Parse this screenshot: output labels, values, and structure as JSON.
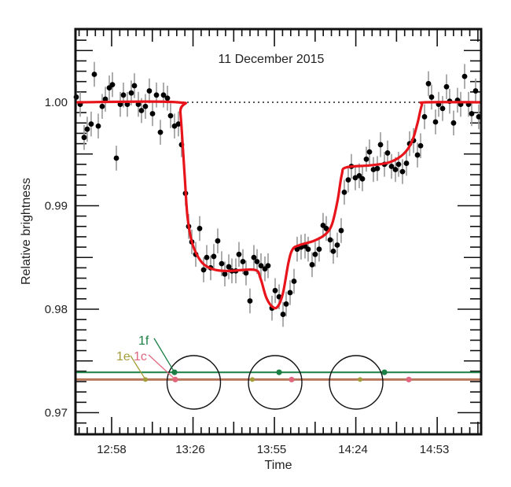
{
  "chart_data": {
    "type": "scatter",
    "title": "11 December 2015",
    "xlabel": "Time",
    "ylabel": "Relative brightness",
    "xlim": [
      "12:44:50",
      "15:09:36"
    ],
    "ylim": [
      0.9679,
      1.0071
    ],
    "x_ticks": [
      "12:58",
      "13:26",
      "13:55",
      "14:24",
      "14:53"
    ],
    "y_ticks": [
      "0.97",
      "0.98",
      "0.99",
      "1.00"
    ],
    "grid": false,
    "reference_line": {
      "value": 1.0,
      "style": "dotted"
    },
    "error": 0.0012,
    "points": [
      [
        "12:45:24",
        1.0005
      ],
      [
        "12:46:48",
        0.9998
      ],
      [
        "12:48:12",
        0.9966
      ],
      [
        "12:49:18",
        0.9974
      ],
      [
        "12:50:42",
        0.9979
      ],
      [
        "12:51:50",
        1.0027
      ],
      [
        "12:53:14",
        0.9977
      ],
      [
        "12:54:38",
        0.9996
      ],
      [
        "12:55:46",
        1.0003
      ],
      [
        "12:57:10",
        1.0014
      ],
      [
        "12:58:17",
        1.0017
      ],
      [
        "12:59:41",
        0.9946
      ],
      [
        "13:01:05",
        0.9998
      ],
      [
        "13:02:12",
        1.0007
      ],
      [
        "13:03:36",
        0.9998
      ],
      [
        "13:05:00",
        1.0009
      ],
      [
        "13:06:07",
        1.0016
      ],
      [
        "13:07:31",
        0.9998
      ],
      [
        "13:08:38",
        0.9992
      ],
      [
        "13:10:02",
        0.9996
      ],
      [
        "13:11:26",
        1.0011
      ],
      [
        "13:12:34",
        0.9989
      ],
      [
        "13:13:58",
        1.0007
      ],
      [
        "13:15:22",
        0.9971
      ],
      [
        "13:16:29",
        1.0007
      ],
      [
        "13:17:53",
        1.0004
      ],
      [
        "13:19:00",
        0.9987
      ],
      [
        "13:20:24",
        0.9977
      ],
      [
        "13:21:48",
        0.9979
      ],
      [
        "13:22:55",
        0.9959
      ],
      [
        "13:24:19",
        0.9912
      ],
      [
        "13:25:26",
        0.988
      ],
      [
        "13:26:34",
        0.9865
      ],
      [
        "13:27:58",
        0.9853
      ],
      [
        "13:29:22",
        0.9878
      ],
      [
        "13:30:46",
        0.9838
      ],
      [
        "13:31:53",
        0.985
      ],
      [
        "13:33:17",
        0.984
      ],
      [
        "13:34:24",
        0.9851
      ],
      [
        "13:35:48",
        0.9866
      ],
      [
        "13:37:12",
        0.9844
      ],
      [
        "13:38:20",
        0.9834
      ],
      [
        "13:39:44",
        0.9841
      ],
      [
        "13:40:51",
        0.9837
      ],
      [
        "13:42:15",
        0.9837
      ],
      [
        "13:43:22",
        0.9853
      ],
      [
        "13:44:46",
        0.9846
      ],
      [
        "13:45:53",
        0.9835
      ],
      [
        "13:47:17",
        0.9808
      ],
      [
        "13:48:41",
        0.985
      ],
      [
        "13:49:49",
        0.9846
      ],
      [
        "13:51:13",
        0.9842
      ],
      [
        "13:52:37",
        0.9839
      ],
      [
        "13:53:44",
        0.9842
      ],
      [
        "13:55:08",
        0.9801
      ],
      [
        "13:56:16",
        0.9818
      ],
      [
        "13:57:40",
        0.9812
      ],
      [
        "13:59:04",
        0.9795
      ],
      [
        "14:00:11",
        0.9805
      ],
      [
        "14:01:35",
        0.9816
      ],
      [
        "14:02:59",
        0.9827
      ],
      [
        "14:04:06",
        0.9858
      ],
      [
        "14:05:30",
        0.986
      ],
      [
        "14:06:54",
        0.9861
      ],
      [
        "14:08:01",
        0.9858
      ],
      [
        "14:09:25",
        0.9843
      ],
      [
        "14:10:32",
        0.9853
      ],
      [
        "14:11:56",
        0.9858
      ],
      [
        "14:13:20",
        0.9881
      ],
      [
        "14:14:28",
        0.9878
      ],
      [
        "14:15:52",
        0.9867
      ],
      [
        "14:16:59",
        0.9856
      ],
      [
        "14:18:23",
        0.9862
      ],
      [
        "14:19:47",
        0.9876
      ],
      [
        "14:20:54",
        0.9913
      ],
      [
        "14:22:18",
        0.9925
      ],
      [
        "14:23:25",
        0.9938
      ],
      [
        "14:24:49",
        0.9927
      ],
      [
        "14:26:13",
        0.9929
      ],
      [
        "14:27:21",
        0.9926
      ],
      [
        "14:28:45",
        0.9945
      ],
      [
        "14:29:52",
        0.9952
      ],
      [
        "14:31:16",
        0.9935
      ],
      [
        "14:32:40",
        0.9936
      ],
      [
        "14:33:48",
        0.9959
      ],
      [
        "14:35:12",
        0.994
      ],
      [
        "14:36:19",
        0.9951
      ],
      [
        "14:37:43",
        0.9938
      ],
      [
        "14:39:07",
        0.9935
      ],
      [
        "14:40:14",
        0.994
      ],
      [
        "14:41:38",
        0.9933
      ],
      [
        "14:43:02",
        0.9941
      ],
      [
        "14:44:10",
        0.996
      ],
      [
        "14:45:34",
        0.9963
      ],
      [
        "14:46:58",
        0.9949
      ],
      [
        "14:48:05",
        0.9958
      ],
      [
        "14:49:29",
        0.9986
      ],
      [
        "14:50:53",
        1.0018
      ],
      [
        "14:52:00",
        1.0005
      ],
      [
        "14:53:24",
        0.9981
      ],
      [
        "14:54:31",
        0.9998
      ],
      [
        "14:55:55",
        0.9994
      ],
      [
        "14:57:19",
        1.0015
      ],
      [
        "14:58:26",
        1.0001
      ],
      [
        "14:59:50",
        0.998
      ],
      [
        "15:01:14",
        1.0002
      ],
      [
        "15:02:22",
        0.9998
      ],
      [
        "15:03:46",
        1.0025
      ],
      [
        "15:05:10",
        0.9998
      ],
      [
        "15:06:17",
        0.9989
      ],
      [
        "15:07:41",
        1.0011
      ],
      [
        "15:08:48",
        0.9986
      ]
    ],
    "model_curve": {
      "color": "#e8141b",
      "points": [
        [
          "12:44:50",
          1.0
        ],
        [
          "13:21:30",
          1.0
        ],
        [
          "13:22:30",
          0.999
        ],
        [
          "13:24:00",
          0.993
        ],
        [
          "13:25:00",
          0.989
        ],
        [
          "13:26:30",
          0.9866
        ],
        [
          "13:28:30",
          0.9852
        ],
        [
          "13:31:00",
          0.9843
        ],
        [
          "13:35:00",
          0.9838
        ],
        [
          "13:40:00",
          0.9837
        ],
        [
          "13:49:00",
          0.9838
        ],
        [
          "13:51:00",
          0.983
        ],
        [
          "13:53:00",
          0.9812
        ],
        [
          "13:55:00",
          0.9803
        ],
        [
          "13:57:00",
          0.9802
        ],
        [
          "13:59:00",
          0.9815
        ],
        [
          "14:01:00",
          0.9845
        ],
        [
          "14:02:30",
          0.9858
        ],
        [
          "14:05:00",
          0.9862
        ],
        [
          "14:10:00",
          0.9866
        ],
        [
          "14:14:00",
          0.9872
        ],
        [
          "14:16:30",
          0.9882
        ],
        [
          "14:18:30",
          0.9905
        ],
        [
          "14:20:00",
          0.993
        ],
        [
          "14:21:30",
          0.9937
        ],
        [
          "14:30:00",
          0.9939
        ],
        [
          "14:37:00",
          0.9942
        ],
        [
          "14:42:00",
          0.995
        ],
        [
          "14:45:00",
          0.9962
        ],
        [
          "14:47:00",
          0.998
        ],
        [
          "14:48:30",
          0.9997
        ],
        [
          "14:50:00",
          1.0
        ],
        [
          "15:09:36",
          1.0
        ]
      ]
    },
    "transit_diagram": {
      "star_centers": [
        "13:27:16",
        "13:56:16",
        "14:25:07"
      ],
      "planets": [
        {
          "name": "1f",
          "color": "#1b7f45",
          "line_value": 0.9739,
          "positions": [
            "13:20:24",
            "13:57:40",
            "14:35:12"
          ]
        },
        {
          "name": "1c",
          "color": "#e0677d",
          "line_value": 0.9732,
          "positions": [
            "13:20:41",
            "14:02:08",
            "14:43:53"
          ]
        },
        {
          "name": "1e",
          "color": "#a49c3a",
          "line_value": 0.9732,
          "positions": [
            "13:10:03",
            "13:48:08",
            "14:26:31"
          ]
        }
      ],
      "orbit_line_color": "#b5785c"
    }
  }
}
